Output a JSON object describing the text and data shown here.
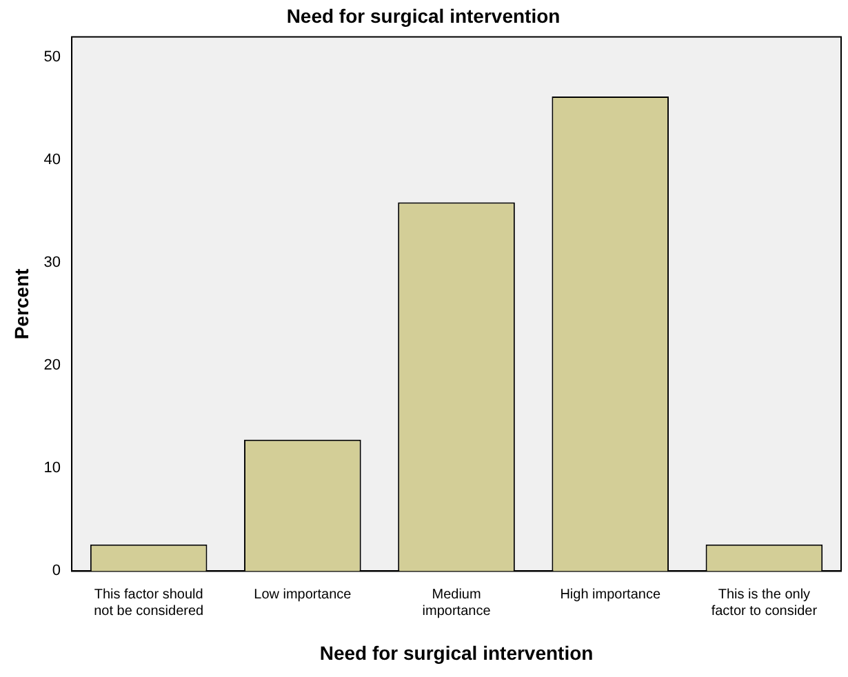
{
  "chart_data": {
    "type": "bar",
    "title": "Need for surgical intervention",
    "xlabel": "Need for surgical intervention",
    "ylabel": "Percent",
    "categories": [
      "This factor should not be considered",
      "Low importance",
      "Medium importance",
      "High importance",
      "This is the only factor to consider"
    ],
    "values": [
      2.6,
      12.8,
      35.9,
      46.2,
      2.6
    ],
    "color": "#d3ce97",
    "ylim": [
      0,
      52
    ],
    "yticks": [
      0,
      10,
      20,
      30,
      40,
      50
    ],
    "grid": false,
    "legend": false
  }
}
